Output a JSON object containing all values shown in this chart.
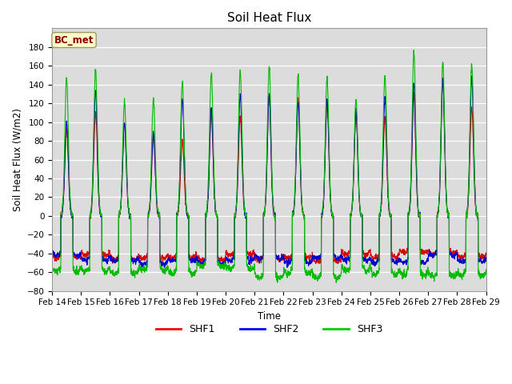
{
  "title": "Soil Heat Flux",
  "ylabel": "Soil Heat Flux (W/m2)",
  "xlabel": "Time",
  "annotation": "BC_met",
  "legend_labels": [
    "SHF1",
    "SHF2",
    "SHF3"
  ],
  "legend_colors": [
    "#ff0000",
    "#0000ff",
    "#00cc00"
  ],
  "ylim": [
    -80,
    200
  ],
  "yticks": [
    -80,
    -60,
    -40,
    -20,
    0,
    20,
    40,
    60,
    80,
    100,
    120,
    140,
    160,
    180
  ],
  "xtick_labels": [
    "Feb 14",
    "Feb 15",
    "Feb 16",
    "Feb 17",
    "Feb 18",
    "Feb 19",
    "Feb 20",
    "Feb 21",
    "Feb 22",
    "Feb 23",
    "Feb 24",
    "Feb 25",
    "Feb 26",
    "Feb 27",
    "Feb 28",
    "Feb 29"
  ],
  "n_days": 15,
  "pts_per_day": 288,
  "background_color": "#dcdcdc",
  "line_width": 0.8,
  "shf1_color": "#dd0000",
  "shf2_color": "#0000cc",
  "shf3_color": "#00bb00",
  "day_peaks_shf1": [
    95,
    110,
    100,
    85,
    80,
    110,
    105,
    130,
    125,
    120,
    110,
    105,
    130,
    145,
    115
  ],
  "day_peaks_shf2": [
    100,
    135,
    100,
    90,
    125,
    115,
    130,
    128,
    122,
    125,
    112,
    125,
    140,
    145,
    148
  ],
  "day_peaks_shf3": [
    148,
    155,
    122,
    125,
    143,
    153,
    157,
    160,
    150,
    148,
    125,
    152,
    175,
    165,
    162
  ],
  "night_base_shf1": -40,
  "night_base_shf2": -45,
  "night_base_shf3": -55,
  "night_depth_shf1": 8,
  "night_depth_shf2": 8,
  "night_depth_shf3": 10
}
